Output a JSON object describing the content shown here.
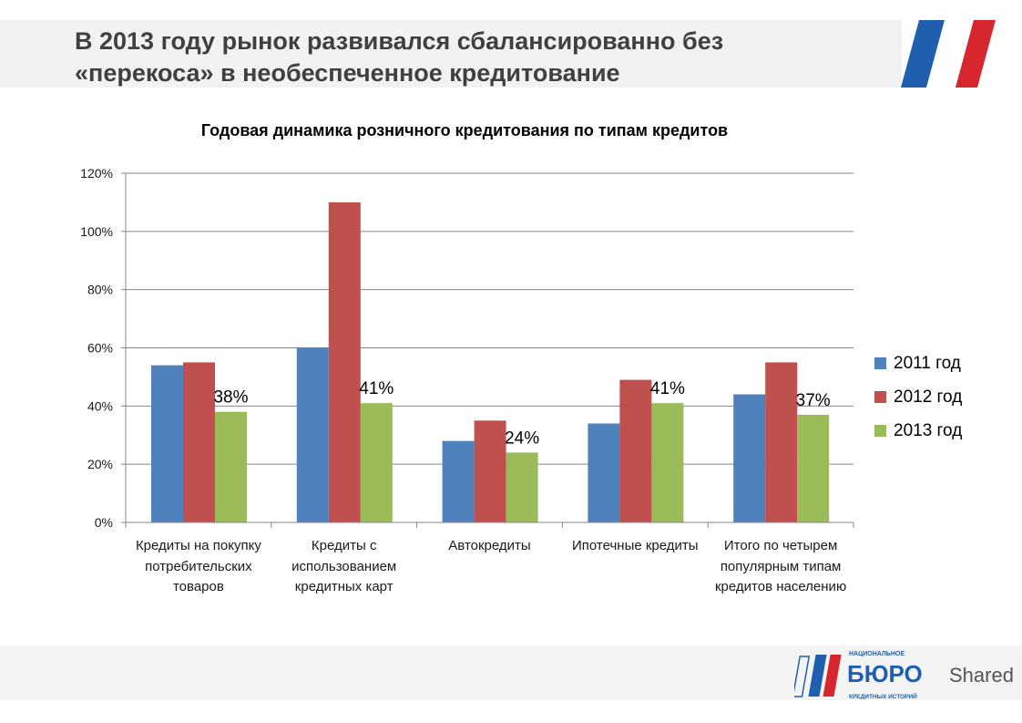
{
  "slide": {
    "title_line1": "В 2013 году рынок развивался сбалансированно без",
    "title_line2": "«перекоса» в необеспеченное кредитование"
  },
  "logo": {
    "top": "НАЦИОНАЛЬНОЕ",
    "main": "БЮРО",
    "bottom": "КРЕДИТНЫХ ИСТОРИЙ",
    "watermark": "Shared"
  },
  "chart_data": {
    "type": "bar",
    "title": "Годовая динамика розничного кредитования по типам кредитов",
    "categories": [
      "Кредиты на покупку потребительских товаров",
      "Кредиты с использованием кредитных карт",
      "Автокредиты",
      "Ипотечные кредиты",
      "Итого по четырем популярным типам кредитов населению"
    ],
    "series": [
      {
        "name": "2011 год",
        "color": "#4f81bd",
        "values": [
          54,
          60,
          28,
          34,
          44
        ]
      },
      {
        "name": "2012 год",
        "color": "#c0504d",
        "values": [
          55,
          110,
          35,
          49,
          55
        ]
      },
      {
        "name": "2013 год",
        "color": "#9bbb59",
        "values": [
          38,
          41,
          24,
          41,
          37
        ]
      }
    ],
    "data_labels": [
      "38%",
      "41%",
      "24%",
      "41%",
      "37%"
    ],
    "yticks": [
      "0%",
      "20%",
      "40%",
      "60%",
      "80%",
      "100%",
      "120%"
    ],
    "ylim": [
      0,
      120
    ],
    "grid": true,
    "legend_position": "right"
  }
}
